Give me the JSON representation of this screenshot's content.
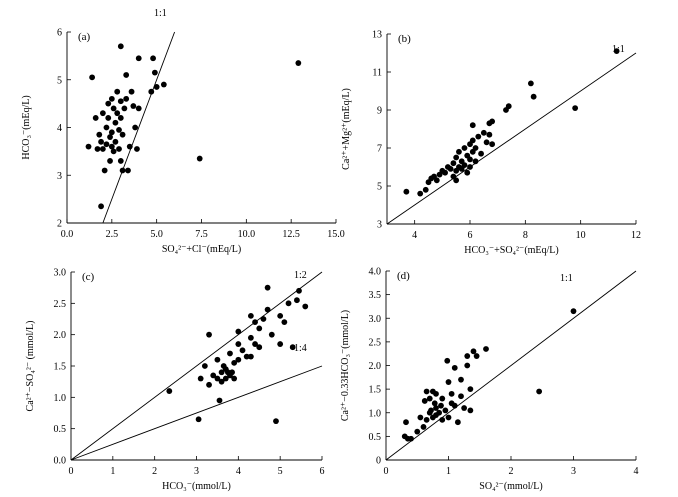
{
  "chart_data": [
    {
      "type": "scatter",
      "panel_label": "(a)",
      "xlabel": "SO₄²⁻+Cl⁻(mEq/L)",
      "ylabel": "HCO₃⁻(mEq/L)",
      "xlim": [
        0,
        15
      ],
      "ylim": [
        2,
        6
      ],
      "xticks": [
        "0.0",
        "2.5",
        "5.0",
        "7.5",
        "10.0",
        "12.5",
        "15.0"
      ],
      "yticks": [
        "2",
        "3",
        "4",
        "5",
        "6"
      ],
      "reference_lines": [
        {
          "label": "1:1",
          "slope": 1
        }
      ],
      "points": [
        [
          1.2,
          3.6
        ],
        [
          1.4,
          5.05
        ],
        [
          1.6,
          4.2
        ],
        [
          1.7,
          3.55
        ],
        [
          1.8,
          3.85
        ],
        [
          1.9,
          2.35
        ],
        [
          1.9,
          3.7
        ],
        [
          2.0,
          4.3
        ],
        [
          2.0,
          3.55
        ],
        [
          2.1,
          3.1
        ],
        [
          2.2,
          4.0
        ],
        [
          2.2,
          3.65
        ],
        [
          2.3,
          4.5
        ],
        [
          2.3,
          4.2
        ],
        [
          2.4,
          3.8
        ],
        [
          2.4,
          3.3
        ],
        [
          2.5,
          4.6
        ],
        [
          2.5,
          3.9
        ],
        [
          2.5,
          3.6
        ],
        [
          2.6,
          4.4
        ],
        [
          2.6,
          3.5
        ],
        [
          2.7,
          4.1
        ],
        [
          2.7,
          3.7
        ],
        [
          2.8,
          4.75
        ],
        [
          2.8,
          4.3
        ],
        [
          2.9,
          3.95
        ],
        [
          2.9,
          3.55
        ],
        [
          3.0,
          5.7
        ],
        [
          3.0,
          4.55
        ],
        [
          3.0,
          4.2
        ],
        [
          3.0,
          3.3
        ],
        [
          3.1,
          3.85
        ],
        [
          3.1,
          3.1
        ],
        [
          3.2,
          4.4
        ],
        [
          3.3,
          4.6
        ],
        [
          3.3,
          5.1
        ],
        [
          3.4,
          3.1
        ],
        [
          3.5,
          3.6
        ],
        [
          3.6,
          4.75
        ],
        [
          3.7,
          4.45
        ],
        [
          3.8,
          4.0
        ],
        [
          3.9,
          3.55
        ],
        [
          4.0,
          5.45
        ],
        [
          4.0,
          4.4
        ],
        [
          4.7,
          4.75
        ],
        [
          4.8,
          5.45
        ],
        [
          4.9,
          5.15
        ],
        [
          5.0,
          4.85
        ],
        [
          5.4,
          4.9
        ],
        [
          7.4,
          3.35
        ],
        [
          12.9,
          5.35
        ]
      ]
    },
    {
      "type": "scatter",
      "panel_label": "(b)",
      "xlabel": "HCO₃⁻+SO₄²⁻(mEq/L)",
      "ylabel": "Ca²⁺+Mg²⁺(mEq/L)",
      "xlim": [
        3,
        12
      ],
      "ylim": [
        3,
        13
      ],
      "xticks": [
        "4",
        "6",
        "8",
        "10",
        "12"
      ],
      "yticks": [
        "3",
        "5",
        "7",
        "9",
        "11",
        "13"
      ],
      "reference_lines": [
        {
          "label": "1:1",
          "slope": 1
        }
      ],
      "points": [
        [
          3.7,
          4.7
        ],
        [
          4.2,
          4.6
        ],
        [
          4.4,
          4.8
        ],
        [
          4.5,
          5.2
        ],
        [
          4.6,
          5.4
        ],
        [
          4.7,
          5.5
        ],
        [
          4.8,
          5.3
        ],
        [
          4.9,
          5.6
        ],
        [
          5.0,
          5.8
        ],
        [
          5.1,
          5.7
        ],
        [
          5.2,
          6.0
        ],
        [
          5.3,
          5.9
        ],
        [
          5.4,
          6.2
        ],
        [
          5.4,
          5.5
        ],
        [
          5.5,
          6.5
        ],
        [
          5.5,
          5.8
        ],
        [
          5.5,
          5.3
        ],
        [
          5.6,
          6.0
        ],
        [
          5.6,
          6.8
        ],
        [
          5.7,
          6.3
        ],
        [
          5.7,
          5.9
        ],
        [
          5.8,
          6.1
        ],
        [
          5.8,
          7.0
        ],
        [
          5.9,
          6.6
        ],
        [
          5.9,
          5.7
        ],
        [
          6.0,
          7.2
        ],
        [
          6.0,
          6.4
        ],
        [
          6.0,
          6.0
        ],
        [
          6.1,
          6.8
        ],
        [
          6.1,
          7.4
        ],
        [
          6.1,
          8.2
        ],
        [
          6.2,
          7.0
        ],
        [
          6.2,
          6.3
        ],
        [
          6.3,
          7.6
        ],
        [
          6.4,
          6.7
        ],
        [
          6.5,
          7.8
        ],
        [
          6.6,
          7.3
        ],
        [
          6.7,
          8.3
        ],
        [
          6.7,
          7.7
        ],
        [
          6.8,
          8.4
        ],
        [
          6.8,
          7.2
        ],
        [
          7.3,
          9.0
        ],
        [
          7.4,
          9.2
        ],
        [
          8.2,
          10.4
        ],
        [
          8.3,
          9.7
        ],
        [
          9.8,
          9.1
        ],
        [
          11.3,
          12.1
        ]
      ]
    },
    {
      "type": "scatter",
      "panel_label": "(c)",
      "xlabel": "HCO₃⁻(mmol/L)",
      "ylabel": "Ca²⁺−SO₄²⁻ (mmol/L)",
      "xlim": [
        0,
        6
      ],
      "ylim": [
        0,
        3
      ],
      "xticks": [
        "0",
        "1",
        "2",
        "3",
        "4",
        "5",
        "6"
      ],
      "yticks": [
        "0.0",
        "0.5",
        "1.0",
        "1.5",
        "2.0",
        "2.5",
        "3.0"
      ],
      "reference_lines": [
        {
          "label": "1:2",
          "slope": 0.5
        },
        {
          "label": "1:4",
          "slope": 0.25
        }
      ],
      "points": [
        [
          2.35,
          1.1
        ],
        [
          3.05,
          0.65
        ],
        [
          3.1,
          1.3
        ],
        [
          3.2,
          1.5
        ],
        [
          3.3,
          2.0
        ],
        [
          3.3,
          1.2
        ],
        [
          3.4,
          1.35
        ],
        [
          3.5,
          1.3
        ],
        [
          3.5,
          1.6
        ],
        [
          3.55,
          0.95
        ],
        [
          3.6,
          1.4
        ],
        [
          3.6,
          1.25
        ],
        [
          3.65,
          1.5
        ],
        [
          3.7,
          1.3
        ],
        [
          3.7,
          1.45
        ],
        [
          3.75,
          1.4
        ],
        [
          3.8,
          1.35
        ],
        [
          3.8,
          1.7
        ],
        [
          3.85,
          1.4
        ],
        [
          3.9,
          1.3
        ],
        [
          3.9,
          1.55
        ],
        [
          4.0,
          1.85
        ],
        [
          4.0,
          1.6
        ],
        [
          4.0,
          2.05
        ],
        [
          4.1,
          1.75
        ],
        [
          4.2,
          1.65
        ],
        [
          4.3,
          2.3
        ],
        [
          4.3,
          1.95
        ],
        [
          4.3,
          1.65
        ],
        [
          4.4,
          2.2
        ],
        [
          4.4,
          1.85
        ],
        [
          4.5,
          2.1
        ],
        [
          4.5,
          1.8
        ],
        [
          4.6,
          2.25
        ],
        [
          4.7,
          2.4
        ],
        [
          4.7,
          2.75
        ],
        [
          4.8,
          2.0
        ],
        [
          4.9,
          0.62
        ],
        [
          5.0,
          2.3
        ],
        [
          5.0,
          1.85
        ],
        [
          5.1,
          2.2
        ],
        [
          5.2,
          2.5
        ],
        [
          5.3,
          1.8
        ],
        [
          5.4,
          2.55
        ],
        [
          5.45,
          2.7
        ],
        [
          5.6,
          2.45
        ]
      ]
    },
    {
      "type": "scatter",
      "panel_label": "(d)",
      "xlabel": "SO₄²⁻(mmol/L)",
      "ylabel": "Ca²⁺−0.33HCO₃⁻(mmol/L)",
      "xlim": [
        0,
        4
      ],
      "ylim": [
        0,
        4
      ],
      "xticks": [
        "0",
        "1",
        "2",
        "3",
        "4"
      ],
      "yticks": [
        "0",
        "0.5",
        "1.0",
        "1.5",
        "2.0",
        "2.5",
        "3.0",
        "3.5",
        "4.0"
      ],
      "reference_lines": [
        {
          "label": "1:1",
          "slope": 1
        }
      ],
      "points": [
        [
          0.3,
          0.5
        ],
        [
          0.32,
          0.8
        ],
        [
          0.35,
          0.45
        ],
        [
          0.4,
          0.45
        ],
        [
          0.5,
          0.6
        ],
        [
          0.55,
          0.9
        ],
        [
          0.6,
          0.7
        ],
        [
          0.62,
          1.25
        ],
        [
          0.65,
          1.45
        ],
        [
          0.65,
          0.85
        ],
        [
          0.7,
          1.0
        ],
        [
          0.7,
          1.3
        ],
        [
          0.72,
          1.05
        ],
        [
          0.75,
          0.9
        ],
        [
          0.75,
          1.45
        ],
        [
          0.78,
          1.2
        ],
        [
          0.8,
          0.95
        ],
        [
          0.8,
          1.1
        ],
        [
          0.8,
          1.4
        ],
        [
          0.85,
          1.0
        ],
        [
          0.88,
          1.15
        ],
        [
          0.9,
          0.85
        ],
        [
          0.9,
          1.3
        ],
        [
          0.95,
          1.05
        ],
        [
          0.98,
          2.1
        ],
        [
          1.0,
          1.65
        ],
        [
          1.0,
          0.9
        ],
        [
          1.05,
          1.2
        ],
        [
          1.05,
          1.4
        ],
        [
          1.1,
          1.15
        ],
        [
          1.1,
          1.95
        ],
        [
          1.15,
          0.8
        ],
        [
          1.2,
          1.35
        ],
        [
          1.2,
          1.7
        ],
        [
          1.25,
          1.1
        ],
        [
          1.3,
          2.0
        ],
        [
          1.3,
          2.2
        ],
        [
          1.35,
          1.5
        ],
        [
          1.35,
          1.05
        ],
        [
          1.4,
          2.3
        ],
        [
          1.45,
          2.2
        ],
        [
          1.6,
          2.35
        ],
        [
          2.45,
          1.45
        ],
        [
          3.0,
          3.15
        ]
      ]
    }
  ]
}
